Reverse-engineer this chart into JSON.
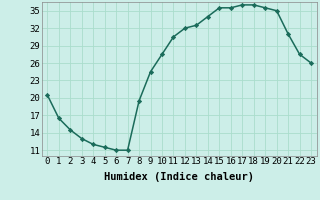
{
  "x": [
    0,
    1,
    2,
    3,
    4,
    5,
    6,
    7,
    8,
    9,
    10,
    11,
    12,
    13,
    14,
    15,
    16,
    17,
    18,
    19,
    20,
    21,
    22,
    23
  ],
  "y": [
    20.5,
    16.5,
    14.5,
    13.0,
    12.0,
    11.5,
    11.0,
    11.0,
    19.5,
    24.5,
    27.5,
    30.5,
    32.0,
    32.5,
    34.0,
    35.5,
    35.5,
    36.0,
    36.0,
    35.5,
    35.0,
    31.0,
    27.5,
    26.0
  ],
  "line_color": "#1a6b5a",
  "marker_color": "#1a6b5a",
  "bg_color": "#cceee8",
  "grid_color": "#aaddcc",
  "xlabel": "Humidex (Indice chaleur)",
  "xlim": [
    -0.5,
    23.5
  ],
  "ylim": [
    10.0,
    36.5
  ],
  "yticks": [
    11,
    14,
    17,
    20,
    23,
    26,
    29,
    32,
    35
  ],
  "xticks": [
    0,
    1,
    2,
    3,
    4,
    5,
    6,
    7,
    8,
    9,
    10,
    11,
    12,
    13,
    14,
    15,
    16,
    17,
    18,
    19,
    20,
    21,
    22,
    23
  ],
  "xtick_labels": [
    "0",
    "1",
    "2",
    "3",
    "4",
    "5",
    "6",
    "7",
    "8",
    "9",
    "10",
    "11",
    "12",
    "13",
    "14",
    "15",
    "16",
    "17",
    "18",
    "19",
    "20",
    "21",
    "22",
    "23"
  ],
  "tick_fontsize": 6.5,
  "xlabel_fontsize": 7.5,
  "linewidth": 1.1,
  "markersize": 2.2
}
